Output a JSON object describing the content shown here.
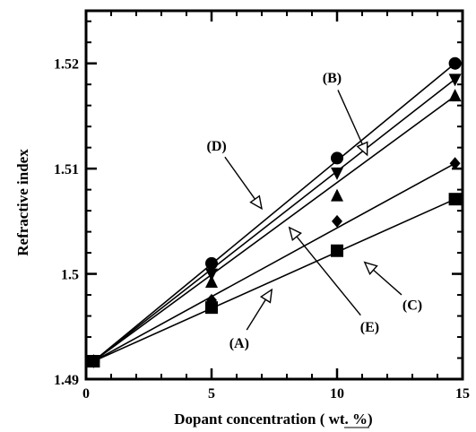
{
  "chart_data": {
    "type": "scatter",
    "title": "",
    "xlabel": "Dopant concentration ( wt. %)",
    "ylabel": "Refractive index",
    "xlim": [
      0,
      15
    ],
    "ylim": [
      1.49,
      1.525
    ],
    "xticks": [
      0,
      5,
      10,
      15
    ],
    "xtick_labels": [
      "0",
      "5",
      "10",
      "15"
    ],
    "yticks": [
      1.49,
      1.5,
      1.51,
      1.52
    ],
    "ytick_labels": [
      "1.49",
      "1.5",
      "1.51",
      "1.52"
    ],
    "grid": false,
    "series": [
      {
        "marker": "square",
        "x": [
          0.3,
          5,
          10,
          14.7
        ],
        "y": [
          1.4917,
          1.4968,
          1.5022,
          1.5071
        ],
        "fit": [
          [
            0.3,
            1.4917
          ],
          [
            14.7,
            1.5071
          ]
        ]
      },
      {
        "marker": "diamond",
        "x": [
          0.3,
          5,
          10,
          14.7
        ],
        "y": [
          1.4917,
          1.4975,
          1.505,
          1.5105
        ],
        "fit": [
          [
            0.3,
            1.4917
          ],
          [
            14.7,
            1.5105
          ]
        ]
      },
      {
        "marker": "triangle-up",
        "x": [
          0.3,
          5,
          10,
          14.7
        ],
        "y": [
          1.4917,
          1.4992,
          1.5074,
          1.5169
        ],
        "fit": [
          [
            0.3,
            1.4917
          ],
          [
            14.7,
            1.5169
          ]
        ]
      },
      {
        "marker": "triangle-down",
        "x": [
          0.3,
          5,
          10,
          14.7
        ],
        "y": [
          1.4917,
          1.5,
          1.5096,
          1.5185
        ],
        "fit": [
          [
            0.3,
            1.4917
          ],
          [
            14.7,
            1.5185
          ]
        ]
      },
      {
        "marker": "circle",
        "x": [
          0.3,
          5,
          10,
          14.7
        ],
        "y": [
          1.4917,
          1.501,
          1.511,
          1.52
        ],
        "fit": [
          [
            0.3,
            1.4917
          ],
          [
            14.7,
            1.52
          ]
        ]
      }
    ],
    "annotations": [
      {
        "text": "(A)",
        "x": 6.1,
        "y": 1.493,
        "arrow_to": [
          7.4,
          1.4985
        ]
      },
      {
        "text": "(B)",
        "x": 9.8,
        "y": 1.5182,
        "arrow_to": [
          11.2,
          1.5113
        ]
      },
      {
        "text": "(C)",
        "x": 13.0,
        "y": 1.4966,
        "arrow_to": [
          11.1,
          1.5011
        ]
      },
      {
        "text": "(D)",
        "x": 5.2,
        "y": 1.5117,
        "arrow_to": [
          7.0,
          1.5062
        ]
      },
      {
        "text": "(E)",
        "x": 11.3,
        "y": 1.4945,
        "arrow_to": [
          8.1,
          1.5044
        ]
      }
    ]
  }
}
